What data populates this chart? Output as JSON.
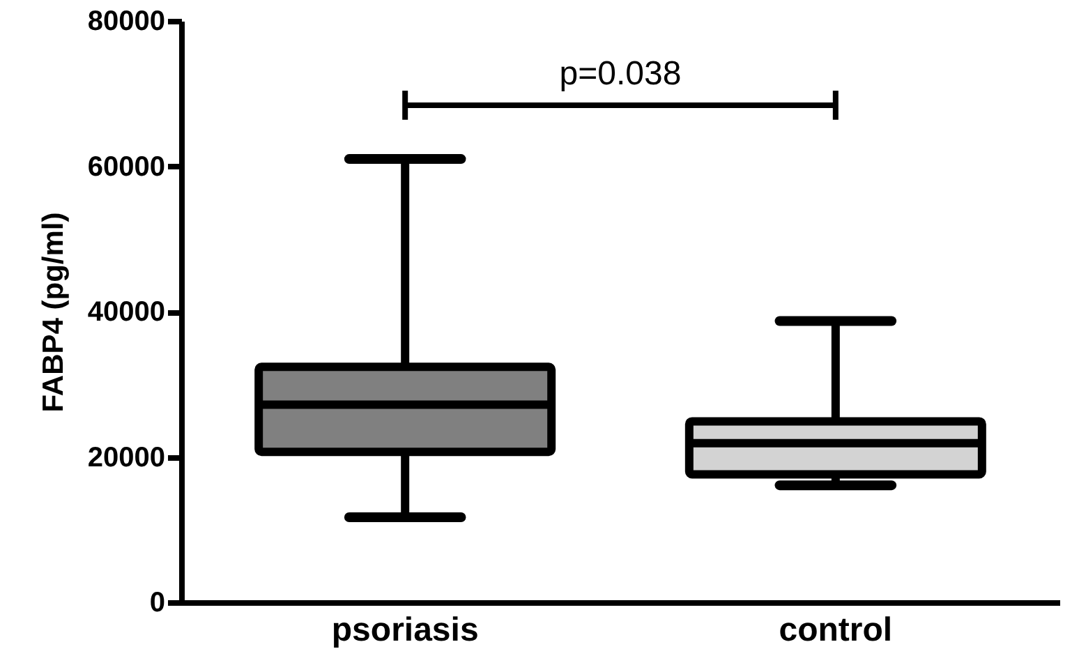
{
  "chart_data": {
    "type": "box",
    "ylabel": "FABP4 (pg/ml)",
    "categories": [
      "psoriasis",
      "control"
    ],
    "colors": [
      "#808080",
      "#d3d3d3"
    ],
    "boxes": [
      {
        "low": 11700,
        "q1": 20700,
        "median": 27200,
        "q3": 32400,
        "high": 61000
      },
      {
        "low": 16100,
        "q1": 17600,
        "median": 21900,
        "q3": 24900,
        "high": 38700
      }
    ],
    "ylim": [
      0,
      80000
    ],
    "yticks": [
      0,
      20000,
      40000,
      60000,
      80000
    ],
    "grid": false,
    "annotations": [
      "p=0.038"
    ]
  }
}
